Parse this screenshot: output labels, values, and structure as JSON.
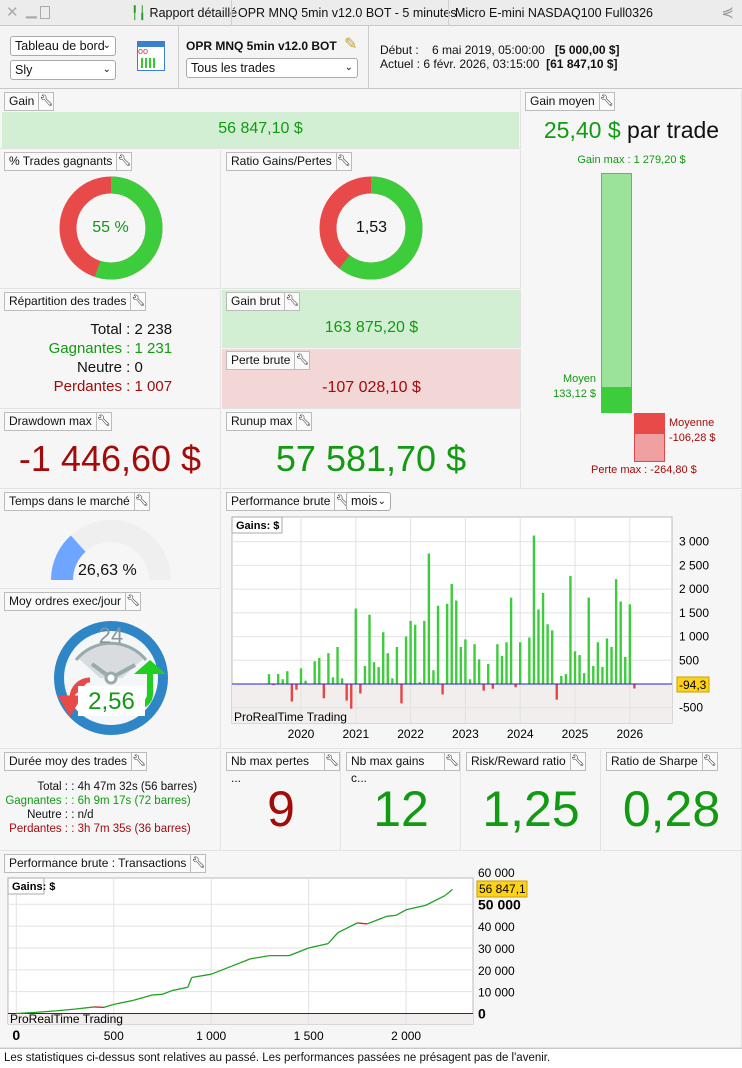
{
  "window": {
    "tabs": [
      "Rapport détaillé",
      "OPR MNQ 5min v12.0 BOT - 5 minutes",
      "Micro E-mini NASDAQ100 Full0326"
    ]
  },
  "toolbar": {
    "view_select": "Tableau de bord",
    "user_select": "Sly",
    "strategy_name": "OPR MNQ 5min v12.0 BOT",
    "trades_select": "Tous les trades",
    "start_label": "Début :",
    "start_date": "6 mai 2019, 05:00:00",
    "start_capital": "[5 000,00 $]",
    "current_label": "Actuel :",
    "current_date": "6 févr. 2026, 03:15:00",
    "current_capital": "[61 847,10 $]"
  },
  "gain": {
    "title": "Gain",
    "value": "56 847,10 $"
  },
  "win_pct": {
    "title": "% Trades gagnants",
    "value": "55 %",
    "fraction": 0.55
  },
  "ratio": {
    "title": "Ratio Gains/Pertes",
    "value": "1,53",
    "fraction": 0.605
  },
  "repartition": {
    "title": "Répartition des trades",
    "rows": [
      {
        "label": "Total",
        "value": "2 238",
        "color": "#111111"
      },
      {
        "label": "Gagnantes",
        "value": "1 231",
        "color": "#129a12"
      },
      {
        "label": "Neutre",
        "value": "0",
        "color": "#111111"
      },
      {
        "label": "Perdantes",
        "value": "1 007",
        "color": "#a30b0b"
      }
    ]
  },
  "gain_brut": {
    "title": "Gain brut",
    "value": "163 875,20 $"
  },
  "perte_brute": {
    "title": "Perte brute",
    "value": "-107 028,10 $"
  },
  "drawdown": {
    "title": "Drawdown max",
    "value": "-1 446,60 $"
  },
  "runup": {
    "title": "Runup max",
    "value": "57 581,70 $"
  },
  "gain_moyen": {
    "title": "Gain moyen",
    "value": "25,40 $",
    "suffix": "par trade",
    "gain_max": "Gain max : 1 279,20 $",
    "moyen_label": "Moyen",
    "moyen_value": "133,12 $",
    "moyenne_label": "Moyenne",
    "moyenne_value": "-106,28 $",
    "perte_max": "Perte max : -264,80 $"
  },
  "temps": {
    "title": "Temps dans le marché",
    "value": "26,63 %",
    "fraction": 0.2663
  },
  "ordres": {
    "title": "Moy ordres exec/jour",
    "clock_label": "24",
    "value": "2,56"
  },
  "perf": {
    "title": "Performance brute",
    "period": "mois"
  },
  "duree": {
    "title": "Durée moy des trades",
    "rows": [
      {
        "label": "Total :",
        "value": "4h 47m 32s (56 barres)",
        "color": "#111111"
      },
      {
        "label": "Gagnantes :",
        "value": "6h 9m 17s (72 barres)",
        "color": "#129a12"
      },
      {
        "label": "Neutre :",
        "value": "n/d",
        "color": "#111111"
      },
      {
        "label": "Perdantes :",
        "value": "3h 7m 35s (36 barres)",
        "color": "#a30b0b"
      }
    ]
  },
  "stats": [
    {
      "title": "Nb max pertes ...",
      "value": "9",
      "color": "#a30b0b"
    },
    {
      "title": "Nb max gains c...",
      "value": "12",
      "color": "#129a12"
    },
    {
      "title": "Risk/Reward ratio",
      "value": "1,25",
      "color": "#129a12"
    },
    {
      "title": "Ratio de Sharpe",
      "value": "0,28",
      "color": "#129a12"
    }
  ],
  "perf_tx": {
    "title": "Performance brute : Transactions"
  },
  "footer": "Les statistiques ci-dessus sont relatives au passé. Les performances passées ne présagent pas de l'avenir.",
  "chart_data": [
    {
      "type": "bar",
      "legend": "Gains: $",
      "watermark": "ProRealTime Trading",
      "last_value_label": "-94,3",
      "ylim": [
        -800,
        3300
      ],
      "yticks": [
        "3 000",
        "2 500",
        "2 000",
        "1 500",
        "1 000",
        "500",
        "-500"
      ],
      "ytick_values": [
        3000,
        2500,
        2000,
        1500,
        1000,
        500,
        -500
      ],
      "xticks": [
        "2020",
        "2021",
        "2022",
        "2023",
        "2024",
        "2025",
        "2026"
      ],
      "grid": true,
      "colors": {
        "positive": "#3ccc3c",
        "negative": "#e84444",
        "zero_line": "#2020d0"
      },
      "x": [
        "2019-06",
        "2019-07",
        "2019-08",
        "2019-09",
        "2019-10",
        "2019-11",
        "2019-12",
        "2020-01",
        "2020-02",
        "2020-03",
        "2020-04",
        "2020-05",
        "2020-06",
        "2020-07",
        "2020-08",
        "2020-09",
        "2020-10",
        "2020-11",
        "2020-12",
        "2021-01",
        "2021-02",
        "2021-03",
        "2021-04",
        "2021-05",
        "2021-06",
        "2021-07",
        "2021-08",
        "2021-09",
        "2021-10",
        "2021-11",
        "2021-12",
        "2022-01",
        "2022-02",
        "2022-03",
        "2022-04",
        "2022-05",
        "2022-06",
        "2022-07",
        "2022-08",
        "2022-09",
        "2022-10",
        "2022-11",
        "2022-12",
        "2023-01",
        "2023-02",
        "2023-03",
        "2023-04",
        "2023-05",
        "2023-06",
        "2023-07",
        "2023-08",
        "2023-09",
        "2023-10",
        "2023-11",
        "2023-12",
        "2024-01",
        "2024-02",
        "2024-03",
        "2024-04",
        "2024-05",
        "2024-06",
        "2024-07",
        "2024-08",
        "2024-09",
        "2024-10",
        "2024-11",
        "2024-12",
        "2025-01",
        "2025-02",
        "2025-03",
        "2025-04",
        "2025-05",
        "2025-06",
        "2025-07",
        "2025-08",
        "2025-09",
        "2025-10",
        "2025-11",
        "2025-12",
        "2026-01",
        "2026-02"
      ],
      "values": [
        208,
        -25,
        210,
        100,
        270,
        -370,
        -120,
        330,
        70,
        0,
        480,
        550,
        -300,
        650,
        140,
        780,
        120,
        -350,
        -520,
        1590,
        -200,
        380,
        1460,
        460,
        360,
        1090,
        650,
        120,
        780,
        -410,
        1000,
        1330,
        1250,
        40,
        1330,
        2750,
        290,
        1650,
        -220,
        1690,
        2110,
        1760,
        780,
        940,
        100,
        840,
        520,
        -140,
        420,
        -100,
        840,
        590,
        880,
        1820,
        -70,
        880,
        0,
        980,
        3130,
        1570,
        1920,
        1260,
        1130,
        -330,
        170,
        210,
        2280,
        690,
        610,
        230,
        1820,
        380,
        880,
        360,
        960,
        780,
        2210,
        1740,
        570,
        1680,
        -94.3
      ]
    },
    {
      "type": "line",
      "legend": "Gains: $",
      "watermark": "ProRealTime Trading",
      "last_value_label": "56 847,1",
      "xlim": [
        0,
        2400
      ],
      "ylim": [
        -2000,
        60000
      ],
      "yticks": [
        "50 000",
        "40 000",
        "30 000",
        "20 000",
        "10 000",
        "0"
      ],
      "ytick_values": [
        50000,
        40000,
        30000,
        20000,
        10000,
        0
      ],
      "xticks": [
        "0",
        "500",
        "1 000",
        "1 500",
        "2 000"
      ],
      "xtick_values": [
        0,
        500,
        1000,
        1500,
        2000
      ],
      "grid": true,
      "colors": {
        "line_up": "#22a022",
        "line_down": "#cc2222",
        "zero_line": "#2020a0"
      },
      "x": [
        0,
        100,
        200,
        300,
        400,
        450,
        500,
        600,
        700,
        750,
        800,
        880,
        900,
        1000,
        1100,
        1200,
        1300,
        1400,
        1500,
        1550,
        1600,
        1650,
        1750,
        1800,
        1900,
        1950,
        2000,
        2100,
        2200,
        2238
      ],
      "values": [
        0,
        500,
        1200,
        2000,
        3000,
        2800,
        4200,
        6000,
        8500,
        8800,
        10500,
        12000,
        16500,
        18000,
        21500,
        25000,
        26500,
        26500,
        30000,
        31000,
        32000,
        37000,
        41500,
        41000,
        44500,
        45000,
        47500,
        49500,
        54000,
        56847.1
      ]
    }
  ]
}
